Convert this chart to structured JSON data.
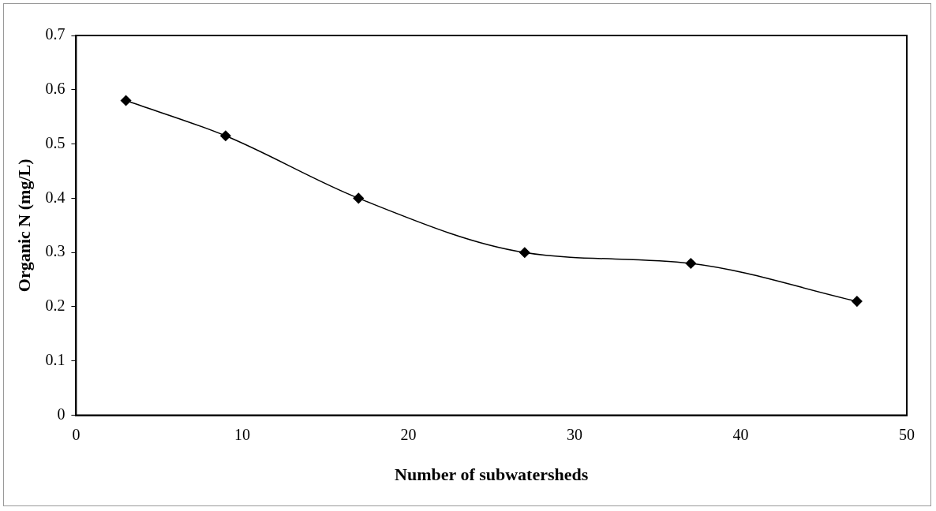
{
  "chart_data": {
    "type": "line",
    "xlabel": "Number of subwatersheds",
    "ylabel": "Organic N (mg/L)",
    "x": [
      3,
      9,
      17,
      27,
      37,
      47
    ],
    "series": [
      {
        "color": "#000000",
        "values": [
          0.58,
          0.515,
          0.4,
          0.3,
          0.28,
          0.21
        ]
      }
    ],
    "xlim": [
      0,
      50
    ],
    "xticks": [
      0,
      10,
      20,
      30,
      40,
      50
    ],
    "ylim": [
      0,
      0.7
    ],
    "yticks": [
      0,
      0.1,
      0.2,
      0.3,
      0.4,
      0.5,
      0.6,
      0.7
    ],
    "grid": false,
    "legend": false,
    "marker": "diamond",
    "line_style": "solid"
  }
}
